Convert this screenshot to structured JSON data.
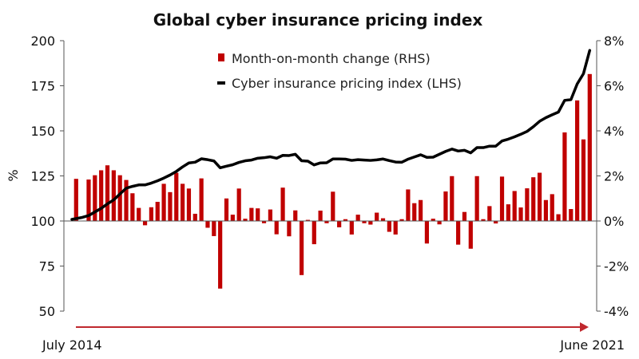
{
  "colors": {
    "bar": "#c00000",
    "line": "#000000",
    "arrow": "#c0282e",
    "axis": "#555555"
  },
  "chart_data": {
    "type": "bar+line",
    "title": "Global cyber insurance pricing index",
    "ylabel_left": "%",
    "ylim_left": [
      50,
      200
    ],
    "yticks_left": [
      "200",
      "175",
      "150",
      "125",
      "100",
      "75",
      "50"
    ],
    "yticks_left_values": [
      200,
      175,
      150,
      125,
      100,
      75,
      50
    ],
    "ylim_right": [
      -4,
      8
    ],
    "yticks_right": [
      "8%",
      "6%",
      "4%",
      "2%",
      "0%",
      "-2%",
      "-4%"
    ],
    "yticks_right_values": [
      8,
      6,
      4,
      2,
      0,
      -2,
      -4
    ],
    "x_start_label": "July 2014",
    "x_end_label": "June 2021",
    "legend_position": "top-center",
    "series": [
      {
        "name": "Month-on-month change (RHS)",
        "type": "bar",
        "axis": "right",
        "values": [
          1.87,
          0.0,
          1.84,
          2.03,
          2.25,
          2.47,
          2.25,
          2.03,
          1.82,
          1.23,
          0.58,
          -0.19,
          0.61,
          0.85,
          1.65,
          1.28,
          2.14,
          1.65,
          1.44,
          0.32,
          1.89,
          -0.3,
          -0.67,
          -3.0,
          1.0,
          0.28,
          1.44,
          0.1,
          0.58,
          0.56,
          -0.1,
          0.51,
          -0.59,
          1.48,
          -0.68,
          0.47,
          -2.4,
          0.05,
          -1.03,
          0.46,
          -0.1,
          1.3,
          -0.28,
          0.08,
          -0.6,
          0.28,
          -0.1,
          -0.16,
          0.37,
          0.12,
          -0.48,
          -0.6,
          0.08,
          1.4,
          0.79,
          0.93,
          -1.0,
          0.1,
          -0.15,
          1.31,
          1.99,
          -1.05,
          0.4,
          -1.23,
          1.99,
          0.08,
          0.66,
          -0.11,
          1.97,
          0.74,
          1.33,
          0.6,
          1.45,
          1.94,
          2.14,
          0.93,
          1.19,
          0.3,
          3.93,
          0.53,
          5.35,
          3.62,
          6.52
        ]
      },
      {
        "name": "Cyber insurance pricing index (LHS)",
        "type": "line",
        "axis": "left",
        "values": [
          100.9,
          102,
          103,
          105,
          107,
          109.5,
          111.7,
          115,
          118.2,
          119.2,
          120,
          120,
          121,
          122.3,
          123.8,
          125.5,
          127.5,
          130,
          132.2,
          132.6,
          134.5,
          134,
          133.3,
          129.5,
          130.4,
          131.2,
          132.5,
          133.4,
          133.8,
          134.8,
          135.1,
          135.6,
          134.8,
          136.4,
          136.3,
          137,
          133.4,
          133.2,
          131.1,
          132.2,
          132.3,
          134.4,
          134.4,
          134.3,
          133.6,
          134,
          133.8,
          133.6,
          133.9,
          134.4,
          133.5,
          132.7,
          132.6,
          134.3,
          135.5,
          136.7,
          135.3,
          135.4,
          137,
          138.6,
          139.9,
          138.8,
          139.2,
          137.8,
          140.7,
          140.7,
          141.5,
          141.5,
          144.4,
          145.4,
          146.7,
          148.1,
          149.7,
          152.3,
          155.3,
          157.3,
          158.9,
          160.4,
          166.9,
          167.3,
          176,
          181.7,
          194.6
        ]
      }
    ]
  }
}
